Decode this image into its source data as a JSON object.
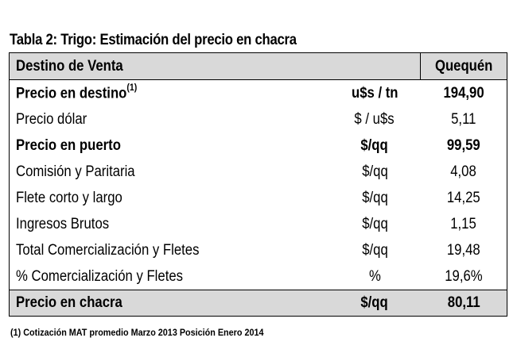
{
  "title": "Tabla 2: Trigo: Estimación del precio en chacra",
  "header": {
    "destino_label": "Destino de Venta",
    "unit_label": "",
    "location": "Quequén"
  },
  "rows": [
    {
      "concept": "Precio en destino",
      "sup": "(1)",
      "unit": "u$s / tn",
      "value": "194,90",
      "bold": true
    },
    {
      "concept": "Precio dólar",
      "sup": "",
      "unit": "$ / u$s",
      "value": "5,11",
      "bold": false
    },
    {
      "concept": "Precio en puerto",
      "sup": "",
      "unit": "$/qq",
      "value": "99,59",
      "bold": true
    },
    {
      "concept": "Comisión y Paritaria",
      "sup": "",
      "unit": "$/qq",
      "value": "4,08",
      "bold": false
    },
    {
      "concept": "Flete corto y largo",
      "sup": "",
      "unit": "$/qq",
      "value": "14,25",
      "bold": false
    },
    {
      "concept": "Ingresos Brutos",
      "sup": "",
      "unit": "$/qq",
      "value": "1,15",
      "bold": false
    },
    {
      "concept": "Total Comercialización y Fletes",
      "sup": "",
      "unit": "$/qq",
      "value": "19,48",
      "bold": false
    },
    {
      "concept": "% Comercialización y Fletes",
      "sup": "",
      "unit": "%",
      "value": "19,6%",
      "bold": false
    }
  ],
  "total": {
    "concept": "Precio en chacra",
    "unit": "$/qq",
    "value": "80,11"
  },
  "footnote": "(1) Cotización MAT promedio Marzo 2013 Posición Enero 2014"
}
